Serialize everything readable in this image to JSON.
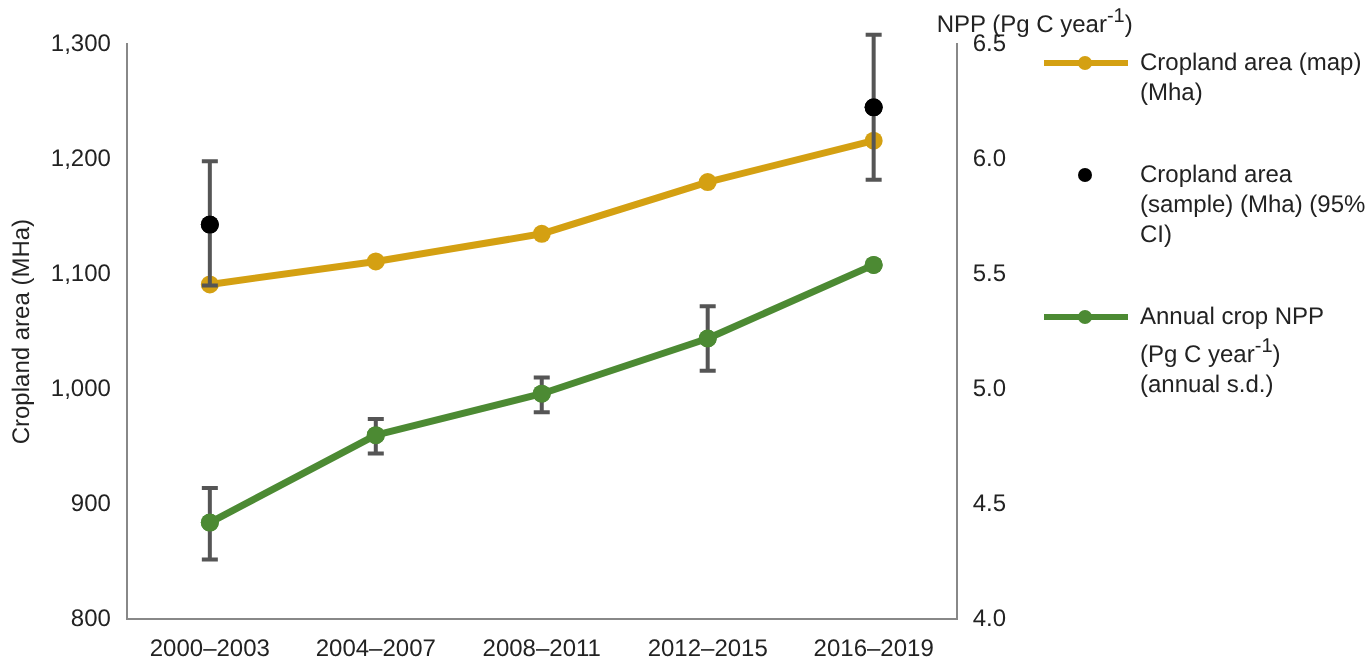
{
  "chart_data": {
    "type": "line",
    "ylabel": "Cropland area (MHa)",
    "y2label": "NPP (Pg C year$^{-1}$)",
    "categories": [
      "2000–2003",
      "2004–2007",
      "2008–2011",
      "2012–2015",
      "2016–2019"
    ],
    "series": [
      {
        "name": "Cropland area (map) (Mha)",
        "color": "#d4a012",
        "values": [
          1091,
          1111,
          1135,
          1180,
          1216
        ]
      },
      {
        "name": "Cropland area (sample) (Mha) (95% CI)",
        "type": "scatter",
        "color": "#000000",
        "values": [
          1143,
          null,
          null,
          null,
          1245
        ],
        "errors": [
          [
            1090,
            1198
          ],
          null,
          null,
          null,
          [
            1182,
            1308
          ]
        ]
      },
      {
        "name": "Annual crop NPP (Pg C year$^{-1}$) (annual s.d.)",
        "color": "#4c8a33",
        "axis": "y2",
        "values": [
          4.42,
          4.8,
          4.98,
          5.22,
          5.54
        ],
        "errors": [
          [
            4.26,
            4.57
          ],
          [
            4.72,
            4.87
          ],
          [
            4.9,
            5.05
          ],
          [
            5.08,
            5.36
          ],
          null
        ]
      }
    ],
    "ylim": [
      800,
      1300
    ],
    "yticks": [
      {
        "value": 800,
        "label": "800"
      },
      {
        "value": 900,
        "label": "900"
      },
      {
        "value": 1000,
        "label": "1,000"
      },
      {
        "value": 1100,
        "label": "1,100"
      },
      {
        "value": 1200,
        "label": "1,200"
      },
      {
        "value": 1300,
        "label": "1,300"
      }
    ],
    "y2lim": [
      4,
      6.5
    ],
    "y2ticks": [
      {
        "value": 4,
        "label": "4.0"
      },
      4.5,
      {
        "value": 5,
        "label": "5.0"
      },
      5.5,
      {
        "value": 6,
        "label": "6.0"
      },
      6.5
    ],
    "grid": false,
    "legend": "right",
    "marker": "circle",
    "line_style": "solid"
  }
}
